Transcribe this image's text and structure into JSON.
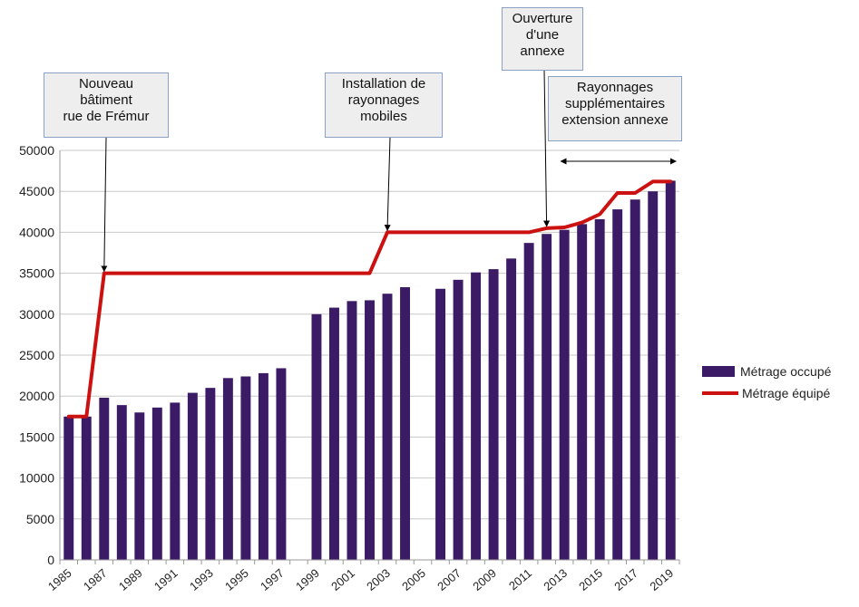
{
  "chart_data": {
    "type": "bar",
    "categories": [
      "1985",
      "1986",
      "1987",
      "1988",
      "1989",
      "1990",
      "1991",
      "1992",
      "1993",
      "1994",
      "1995",
      "1996",
      "1997",
      "1998",
      "1999",
      "2000",
      "2001",
      "2002",
      "2003",
      "2004",
      "2005",
      "2006",
      "2007",
      "2008",
      "2009",
      "2010",
      "2011",
      "2012",
      "2013",
      "2014",
      "2015",
      "2016",
      "2017",
      "2018",
      "2019"
    ],
    "xtick_labels": [
      "1985",
      "1987",
      "1989",
      "1991",
      "1993",
      "1995",
      "1997",
      "1999",
      "2001",
      "2003",
      "2005",
      "2007",
      "2009",
      "2011",
      "2013",
      "2015",
      "2017",
      "2019"
    ],
    "ylim": [
      0,
      50000
    ],
    "yticks": [
      "0",
      "5000",
      "10000",
      "15000",
      "20000",
      "25000",
      "30000",
      "35000",
      "40000",
      "45000",
      "50000"
    ],
    "grid": true,
    "legend_position": "right",
    "series": [
      {
        "name": "Métrage occupé",
        "type": "bar",
        "color": "#3b1a66",
        "values": [
          17500,
          17500,
          19800,
          18900,
          18000,
          18600,
          19200,
          20400,
          21000,
          22200,
          22400,
          22800,
          23400,
          null,
          30000,
          30800,
          31600,
          31700,
          32500,
          33300,
          null,
          33100,
          34200,
          35100,
          35500,
          36800,
          38700,
          39800,
          40300,
          41000,
          41600,
          42800,
          44000,
          45000,
          46300
        ]
      },
      {
        "name": "Métrage équipé",
        "type": "line",
        "color": "#cc1111",
        "values": [
          17500,
          17500,
          35000,
          35000,
          35000,
          35000,
          35000,
          35000,
          35000,
          35000,
          35000,
          35000,
          35000,
          35000,
          35000,
          35000,
          35000,
          35000,
          40000,
          40000,
          40000,
          40000,
          40000,
          40000,
          40000,
          40000,
          40000,
          40500,
          40600,
          41200,
          42200,
          44800,
          44800,
          46200,
          46200
        ]
      }
    ],
    "annotations": [
      {
        "lines": [
          "Nouveau",
          "bâtiment",
          "rue de Frémur"
        ],
        "arrow_year": "1987"
      },
      {
        "lines": [
          "Installation de",
          "rayonnages",
          "mobiles"
        ],
        "arrow_year": "2003"
      },
      {
        "lines": [
          "Ouverture",
          "d'une",
          "annexe"
        ],
        "arrow_year": "2012"
      },
      {
        "lines": [
          "Rayonnages",
          "supplémentaires",
          "extension annexe"
        ],
        "range": [
          "2013",
          "2019"
        ]
      }
    ]
  }
}
